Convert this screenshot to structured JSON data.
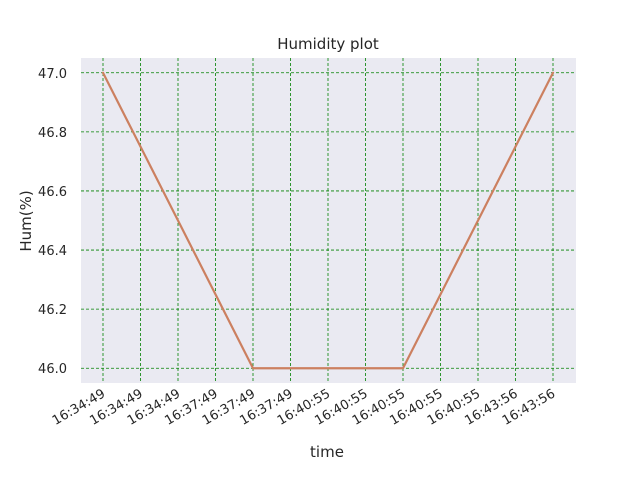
{
  "chart_data": {
    "type": "line",
    "title": "Humidity plot",
    "xlabel": "time",
    "ylabel": "Hum(%)",
    "categories": [
      "16:34:49",
      "16:34:49",
      "16:34:49",
      "16:37:49",
      "16:37:49",
      "16:37:49",
      "16:40:55",
      "16:40:55",
      "16:40:55",
      "16:40:55",
      "16:40:55",
      "16:43:56",
      "16:43:56"
    ],
    "series": [
      {
        "values": [
          47.0,
          46.75,
          46.5,
          46.25,
          46.0,
          46.0,
          46.0,
          46.0,
          46.0,
          46.25,
          46.5,
          46.75,
          47.0
        ]
      }
    ],
    "ylim": [
      45.95,
      47.05
    ],
    "yticks": [
      "46.0",
      "46.2",
      "46.4",
      "46.6",
      "46.8",
      "47.0"
    ],
    "grid": true,
    "colors": {
      "plot_background": "#eaeaf2",
      "grid": "#008000",
      "line": "#cc8060",
      "text": "#262626"
    }
  }
}
